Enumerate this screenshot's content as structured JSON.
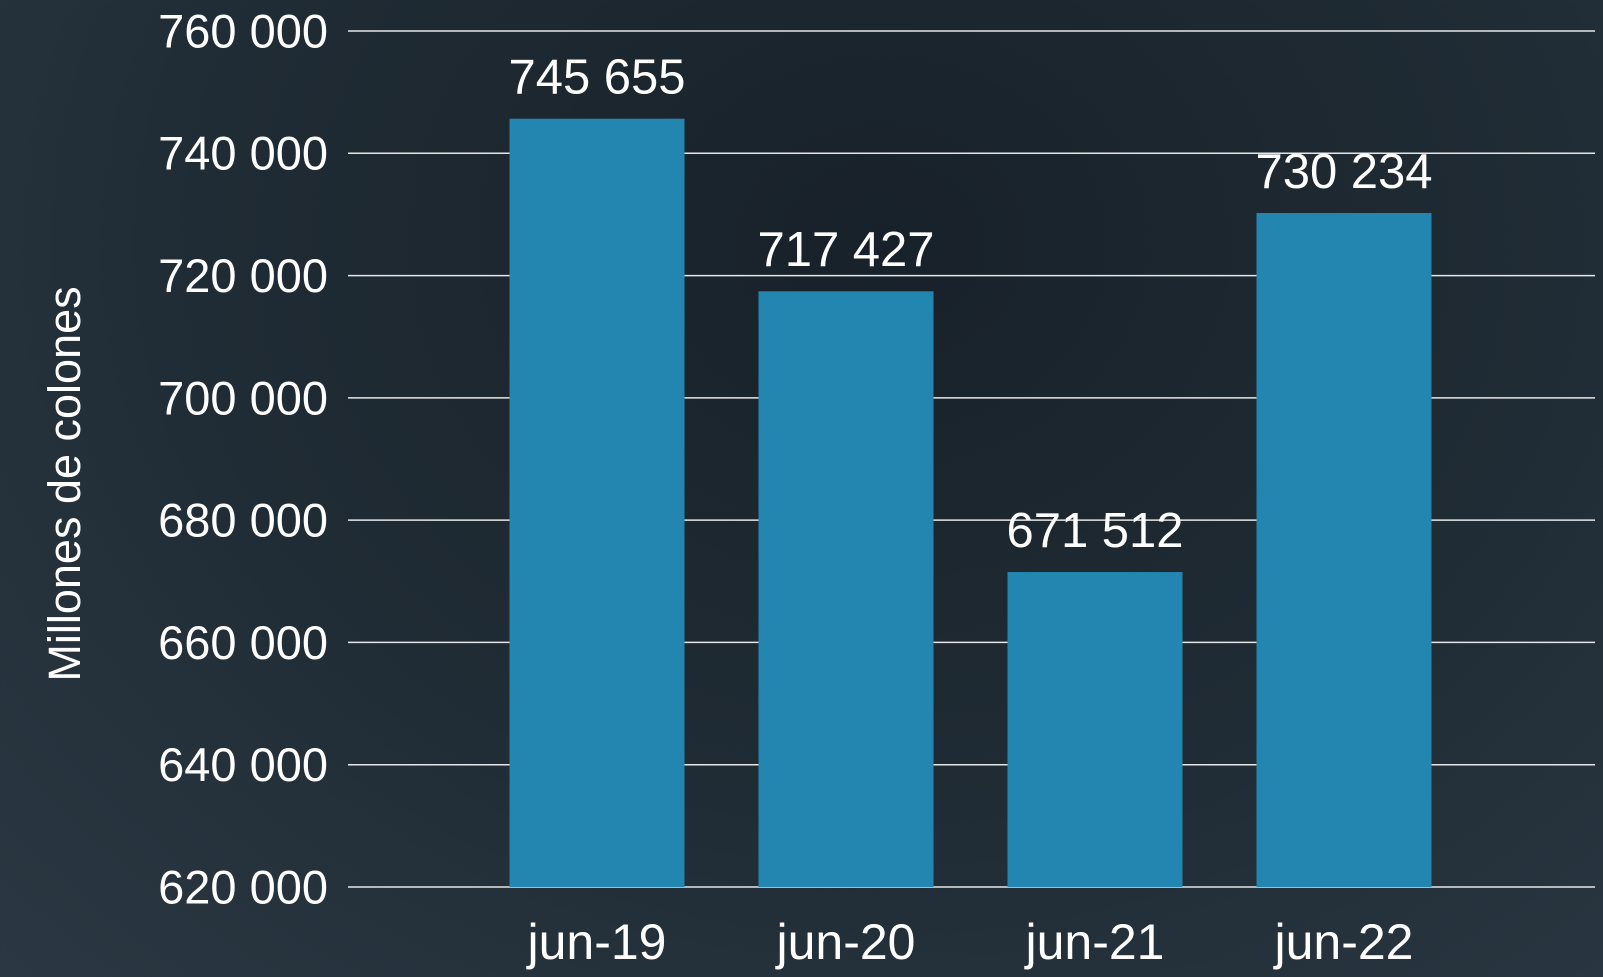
{
  "chart_data": {
    "type": "bar",
    "y_label": "Millones de colones",
    "categories": [
      "jun-19",
      "jun-20",
      "jun-21",
      "jun-22"
    ],
    "values": [
      745655,
      717427,
      671512,
      730234
    ],
    "value_labels": [
      "745 655",
      "717 427",
      "671 512",
      "730 234"
    ],
    "color": "#2386b0",
    "ylim": [
      620000,
      760000
    ],
    "yticks": [
      {
        "value": 620000,
        "label": "620 000"
      },
      {
        "value": 640000,
        "label": "640 000"
      },
      {
        "value": 660000,
        "label": "660 000"
      },
      {
        "value": 680000,
        "label": "680 000"
      },
      {
        "value": 700000,
        "label": "700 000"
      },
      {
        "value": 720000,
        "label": "720 000"
      },
      {
        "value": 740000,
        "label": "740 000"
      },
      {
        "value": 760000,
        "label": "760 000"
      }
    ],
    "grid": true
  }
}
